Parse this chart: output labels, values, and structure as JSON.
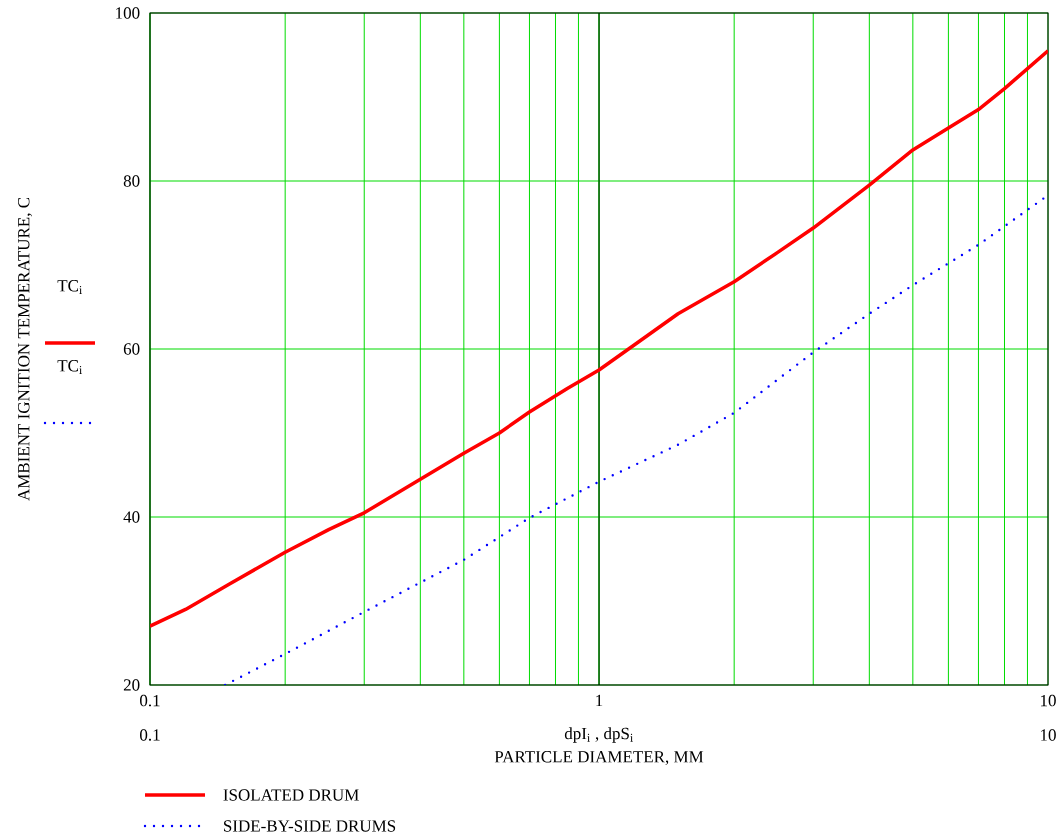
{
  "chart_data": {
    "type": "line",
    "xlabel": "PARTICLE DIAMETER, MM",
    "ylabel": "AMBIENT IGNITION TEMPERATURE, C",
    "log": "x",
    "xlim": [
      0.1,
      10
    ],
    "xticks": [
      0.1,
      1,
      10
    ],
    "ylim": [
      20,
      100
    ],
    "yticks": [
      20,
      40,
      60,
      80,
      100
    ],
    "grid": true,
    "legend": "bottom left",
    "marker": "none",
    "ref_lines": [
      {
        "axis": "x",
        "value": 1,
        "color": "#000000"
      }
    ],
    "annotations": [
      "dpI$_{i}$ , dpS$_{i}$",
      "TC$_{i}$",
      "TC$_{i}$",
      "0.1",
      "10"
    ],
    "series": [
      {
        "name": "ISOLATED DRUM",
        "color": "#ff0000",
        "line_style": "solid",
        "x": [
          0.1,
          0.12,
          0.15,
          0.2,
          0.25,
          0.3,
          0.4,
          0.5,
          0.6,
          0.7,
          0.85,
          1,
          1.2,
          1.5,
          2,
          2.5,
          3,
          4,
          5,
          6,
          7,
          8,
          10
        ],
        "values": [
          27.0,
          29.0,
          32.0,
          35.8,
          38.5,
          40.5,
          44.5,
          47.6,
          50.0,
          52.5,
          55.3,
          57.5,
          60.5,
          64.2,
          68.0,
          71.5,
          74.4,
          79.5,
          83.7,
          86.3,
          88.5,
          91.0,
          95.5
        ]
      },
      {
        "name": "SIDE-BY-SIDE DRUMS",
        "color": "#0000ff",
        "line_style": "dotted",
        "x": [
          0.147,
          0.2,
          0.3,
          0.4,
          0.5,
          0.7,
          1,
          1.5,
          2,
          3,
          4,
          5,
          7,
          10
        ],
        "values": [
          20.0,
          23.7,
          28.7,
          32.2,
          34.9,
          39.9,
          44.2,
          48.6,
          52.4,
          59.6,
          64.2,
          67.6,
          72.4,
          78.3
        ]
      }
    ]
  }
}
